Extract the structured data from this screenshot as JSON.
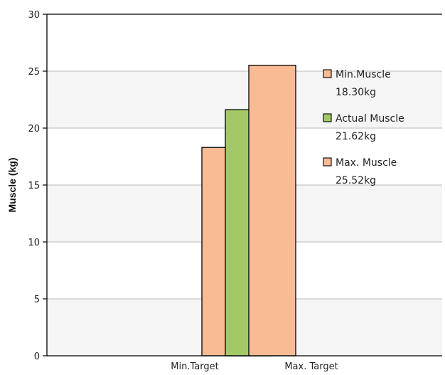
{
  "chart_data": {
    "type": "bar",
    "ylabel": "Muscle (kg)",
    "xlabel": "",
    "ylim": [
      0,
      30
    ],
    "yticks": [
      0,
      5,
      10,
      15,
      20,
      25,
      30
    ],
    "categories": [
      "Min.Target",
      "Max. Target"
    ],
    "bars": [
      {
        "name": "Min.Muscle",
        "value": 18.3,
        "color": "#f8bb94"
      },
      {
        "name": "Actual Muscle",
        "value": 21.62,
        "color": "#a5c867"
      },
      {
        "name": "Max. Muscle",
        "value": 25.52,
        "color": "#f8bb94"
      }
    ],
    "legend": [
      {
        "label": "Min.Muscle",
        "value_label": "18.30kg",
        "color": "#f8bb94"
      },
      {
        "label": "Actual Muscle",
        "value_label": "21.62kg",
        "color": "#a5c867"
      },
      {
        "label": "Max. Muscle",
        "value_label": "25.52kg",
        "color": "#f8bb94"
      }
    ],
    "legend_position": "top-right",
    "grid": true,
    "band_colors": [
      "#f5f5f5",
      "#ffffff"
    ]
  }
}
